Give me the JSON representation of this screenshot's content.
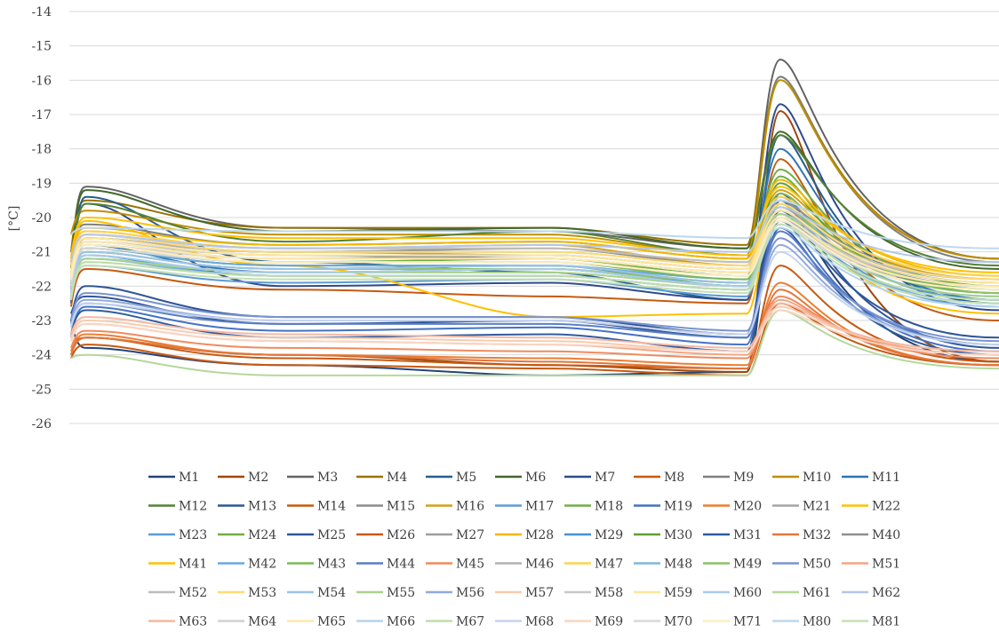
{
  "chart_data": {
    "type": "line",
    "ylabel": "[°C]",
    "ylim": [
      -26,
      -14
    ],
    "yticks": [
      "-14",
      "-15",
      "-16",
      "-17",
      "-18",
      "-19",
      "-20",
      "-21",
      "-22",
      "-23",
      "-24",
      "-25",
      "-26"
    ],
    "grid": "horizontal",
    "legend_position": "bottom",
    "x_samples": 7,
    "series": [
      {
        "name": "M1",
        "color": "#264478",
        "values": [
          -23.0,
          -23.8,
          -24.3,
          -24.6,
          -24.5,
          -19.5,
          -24.2
        ]
      },
      {
        "name": "M2",
        "color": "#9E480E",
        "values": [
          -24.0,
          -23.5,
          -24.0,
          -24.3,
          -24.5,
          -16.9,
          -24.2
        ]
      },
      {
        "name": "M3",
        "color": "#636363",
        "values": [
          -21.5,
          -19.1,
          -20.3,
          -20.4,
          -20.9,
          -15.4,
          -21.2
        ]
      },
      {
        "name": "M4",
        "color": "#997300",
        "values": [
          -21.0,
          -19.5,
          -20.3,
          -20.3,
          -20.8,
          -15.9,
          -21.2
        ]
      },
      {
        "name": "M5",
        "color": "#255E91",
        "values": [
          -22.5,
          -19.4,
          -21.3,
          -21.6,
          -22.4,
          -17.6,
          -22.5
        ]
      },
      {
        "name": "M6",
        "color": "#43682B",
        "values": [
          -21.5,
          -19.2,
          -20.4,
          -20.3,
          -20.9,
          -17.5,
          -21.5
        ]
      },
      {
        "name": "M7",
        "color": "#2F4B8C",
        "values": [
          -22.0,
          -19.6,
          -22.0,
          -21.9,
          -22.4,
          -16.7,
          -22.7
        ]
      },
      {
        "name": "M8",
        "color": "#C55A11",
        "values": [
          -22.6,
          -21.5,
          -22.1,
          -22.3,
          -22.5,
          -18.3,
          -23.0
        ]
      },
      {
        "name": "M9",
        "color": "#7F7F7F",
        "values": [
          -21.0,
          -20.2,
          -20.8,
          -20.7,
          -21.2,
          -15.9,
          -21.3
        ]
      },
      {
        "name": "M10",
        "color": "#BF8F00",
        "values": [
          -20.5,
          -19.8,
          -20.5,
          -20.5,
          -21.1,
          -16.0,
          -21.2
        ]
      },
      {
        "name": "M11",
        "color": "#2E75B6",
        "values": [
          -22.0,
          -20.8,
          -21.6,
          -21.5,
          -22.0,
          -18.0,
          -22.4
        ]
      },
      {
        "name": "M12",
        "color": "#548235",
        "values": [
          -22.0,
          -19.6,
          -20.7,
          -20.4,
          -21.1,
          -17.6,
          -21.4
        ]
      },
      {
        "name": "M13",
        "color": "#2F5597",
        "values": [
          -23.0,
          -22.0,
          -22.9,
          -22.9,
          -23.4,
          -19.8,
          -23.5
        ]
      },
      {
        "name": "M14",
        "color": "#C55A11",
        "values": [
          -23.8,
          -23.5,
          -24.1,
          -24.3,
          -24.4,
          -21.4,
          -24.2
        ]
      },
      {
        "name": "M15",
        "color": "#8C8C8C",
        "values": [
          -22.0,
          -20.6,
          -21.1,
          -21.2,
          -21.6,
          -19.8,
          -22.0
        ]
      },
      {
        "name": "M16",
        "color": "#D4A017",
        "values": [
          -21.2,
          -20.4,
          -20.9,
          -20.8,
          -21.4,
          -19.2,
          -21.8
        ]
      },
      {
        "name": "M17",
        "color": "#5B9BD5",
        "values": [
          -22.4,
          -21.4,
          -21.9,
          -21.8,
          -22.3,
          -19.5,
          -22.6
        ]
      },
      {
        "name": "M18",
        "color": "#70AD47",
        "values": [
          -22.3,
          -21.2,
          -21.6,
          -21.5,
          -22.0,
          -18.8,
          -22.2
        ]
      },
      {
        "name": "M19",
        "color": "#4472C4",
        "values": [
          -23.5,
          -22.6,
          -23.3,
          -23.2,
          -23.7,
          -20.1,
          -23.9
        ]
      },
      {
        "name": "M20",
        "color": "#ED7D31",
        "values": [
          -23.9,
          -23.4,
          -24.0,
          -24.1,
          -24.3,
          -21.9,
          -24.3
        ]
      },
      {
        "name": "M21",
        "color": "#A5A5A5",
        "values": [
          -21.6,
          -20.5,
          -21.0,
          -21.1,
          -21.5,
          -19.6,
          -21.9
        ]
      },
      {
        "name": "M22",
        "color": "#FFC000",
        "values": [
          -21.3,
          -20.1,
          -21.4,
          -22.9,
          -22.8,
          -19.6,
          -22.8
        ]
      },
      {
        "name": "M23",
        "color": "#5B9BD5",
        "values": [
          -22.1,
          -21.0,
          -21.5,
          -21.4,
          -22.0,
          -19.4,
          -22.4
        ]
      },
      {
        "name": "M24",
        "color": "#70AD47",
        "values": [
          -21.8,
          -20.9,
          -21.3,
          -21.2,
          -21.7,
          -18.6,
          -22.0
        ]
      },
      {
        "name": "M25",
        "color": "#2F5597",
        "values": [
          -22.8,
          -22.3,
          -23.1,
          -23.0,
          -23.5,
          -19.3,
          -23.8
        ]
      },
      {
        "name": "M26",
        "color": "#C55A11",
        "values": [
          -24.1,
          -23.7,
          -24.3,
          -24.4,
          -24.6,
          -22.5,
          -24.3
        ]
      },
      {
        "name": "M27",
        "color": "#9E9E9E",
        "values": [
          -21.9,
          -20.7,
          -21.2,
          -21.1,
          -21.5,
          -19.7,
          -22.1
        ]
      },
      {
        "name": "M28",
        "color": "#F4B800",
        "values": [
          -21.1,
          -20.3,
          -20.8,
          -20.7,
          -21.2,
          -18.9,
          -21.7
        ]
      },
      {
        "name": "M29",
        "color": "#4A90D9",
        "values": [
          -22.2,
          -21.1,
          -21.7,
          -21.7,
          -22.1,
          -19.9,
          -22.5
        ]
      },
      {
        "name": "M30",
        "color": "#5E9E37",
        "values": [
          -22.0,
          -20.9,
          -21.4,
          -21.4,
          -21.9,
          -19.0,
          -22.2
        ]
      },
      {
        "name": "M31",
        "color": "#2E5C9E",
        "values": [
          -23.4,
          -22.7,
          -23.5,
          -23.4,
          -23.9,
          -20.3,
          -24.0
        ]
      },
      {
        "name": "M32",
        "color": "#E2763A",
        "values": [
          -24.0,
          -23.5,
          -24.0,
          -24.2,
          -24.4,
          -22.1,
          -24.3
        ]
      },
      {
        "name": "M40",
        "color": "#8F8F8F",
        "values": [
          -21.8,
          -20.6,
          -21.0,
          -20.9,
          -21.4,
          -19.5,
          -21.8
        ]
      },
      {
        "name": "M41",
        "color": "#FFC000",
        "values": [
          -21.2,
          -20.0,
          -20.6,
          -20.6,
          -21.1,
          -19.1,
          -21.6
        ]
      },
      {
        "name": "M42",
        "color": "#6AA9DE",
        "values": [
          -22.0,
          -20.9,
          -21.4,
          -21.4,
          -21.8,
          -19.8,
          -22.3
        ]
      },
      {
        "name": "M43",
        "color": "#7CB955",
        "values": [
          -21.9,
          -20.8,
          -21.3,
          -21.3,
          -21.8,
          -19.3,
          -22.1
        ]
      },
      {
        "name": "M44",
        "color": "#5A7FC7",
        "values": [
          -23.2,
          -22.5,
          -23.1,
          -23.1,
          -23.5,
          -20.4,
          -23.7
        ]
      },
      {
        "name": "M45",
        "color": "#F08A5D",
        "values": [
          -23.8,
          -23.3,
          -23.8,
          -23.9,
          -24.1,
          -22.3,
          -24.1
        ]
      },
      {
        "name": "M46",
        "color": "#B2B2B2",
        "values": [
          -21.7,
          -20.6,
          -21.0,
          -21.0,
          -21.4,
          -19.8,
          -21.9
        ]
      },
      {
        "name": "M47",
        "color": "#FFD24D",
        "values": [
          -21.4,
          -20.4,
          -20.9,
          -20.9,
          -21.3,
          -19.4,
          -21.7
        ]
      },
      {
        "name": "M48",
        "color": "#7DB5E3",
        "values": [
          -22.3,
          -21.2,
          -21.7,
          -21.7,
          -22.1,
          -20.0,
          -22.5
        ]
      },
      {
        "name": "M49",
        "color": "#8CC265",
        "values": [
          -22.1,
          -21.0,
          -21.5,
          -21.5,
          -21.9,
          -19.6,
          -22.2
        ]
      },
      {
        "name": "M50",
        "color": "#7A93CF",
        "values": [
          -23.0,
          -22.2,
          -22.9,
          -22.9,
          -23.3,
          -20.6,
          -23.6
        ]
      },
      {
        "name": "M51",
        "color": "#F4A582",
        "values": [
          -23.6,
          -23.1,
          -23.6,
          -23.7,
          -24.0,
          -22.4,
          -24.0
        ]
      },
      {
        "name": "M52",
        "color": "#BDBDBD",
        "values": [
          -21.6,
          -20.5,
          -20.9,
          -20.9,
          -21.3,
          -19.9,
          -21.8
        ]
      },
      {
        "name": "M53",
        "color": "#FFDA73",
        "values": [
          -21.5,
          -20.5,
          -21.0,
          -21.0,
          -21.4,
          -19.6,
          -21.8
        ]
      },
      {
        "name": "M54",
        "color": "#9DC3E6",
        "values": [
          -22.1,
          -21.0,
          -21.5,
          -21.4,
          -21.9,
          -20.1,
          -22.4
        ]
      },
      {
        "name": "M55",
        "color": "#A9D18E",
        "values": [
          -22.2,
          -21.2,
          -21.6,
          -21.6,
          -22.0,
          -19.9,
          -22.3
        ]
      },
      {
        "name": "M56",
        "color": "#8FAADC",
        "values": [
          -23.1,
          -22.4,
          -23.0,
          -23.0,
          -23.4,
          -20.8,
          -23.7
        ]
      },
      {
        "name": "M57",
        "color": "#F8CBAD",
        "values": [
          -23.5,
          -23.0,
          -23.5,
          -23.6,
          -23.9,
          -22.6,
          -23.9
        ]
      },
      {
        "name": "M58",
        "color": "#C9C9C9",
        "values": [
          -21.8,
          -20.7,
          -21.1,
          -21.1,
          -21.5,
          -20.0,
          -21.9
        ]
      },
      {
        "name": "M59",
        "color": "#FFE699",
        "values": [
          -21.6,
          -20.6,
          -21.1,
          -21.1,
          -21.5,
          -19.8,
          -21.9
        ]
      },
      {
        "name": "M60",
        "color": "#A9CCEA",
        "values": [
          -22.2,
          -21.1,
          -21.6,
          -21.5,
          -22.0,
          -20.2,
          -22.5
        ]
      },
      {
        "name": "M61",
        "color": "#B4D89A",
        "values": [
          -24.1,
          -24.0,
          -24.6,
          -24.6,
          -24.6,
          -22.7,
          -24.4
        ]
      },
      {
        "name": "M62",
        "color": "#B4C7E7",
        "values": [
          -21.3,
          -20.5,
          -20.9,
          -20.8,
          -21.0,
          -19.7,
          -21.3
        ]
      },
      {
        "name": "M63",
        "color": "#F4B8A4",
        "values": [
          -23.4,
          -22.9,
          -23.4,
          -23.5,
          -23.8,
          -22.5,
          -23.9
        ]
      },
      {
        "name": "M64",
        "color": "#D0D0D0",
        "values": [
          -21.9,
          -20.8,
          -21.2,
          -21.2,
          -21.6,
          -20.1,
          -22.0
        ]
      },
      {
        "name": "M65",
        "color": "#FFE8A8",
        "values": [
          -21.7,
          -20.7,
          -21.2,
          -21.2,
          -21.6,
          -20.0,
          -22.0
        ]
      },
      {
        "name": "M66",
        "color": "#B5D4EE",
        "values": [
          -22.3,
          -21.3,
          -21.7,
          -21.7,
          -22.1,
          -20.3,
          -22.6
        ]
      },
      {
        "name": "M67",
        "color": "#BFDDA8",
        "values": [
          -22.3,
          -21.3,
          -21.7,
          -21.7,
          -22.1,
          -20.1,
          -22.4
        ]
      },
      {
        "name": "M68",
        "color": "#C5D3EE",
        "values": [
          -23.2,
          -22.5,
          -23.0,
          -23.0,
          -23.4,
          -21.0,
          -23.7
        ]
      },
      {
        "name": "M69",
        "color": "#F9D5C4",
        "values": [
          -23.6,
          -23.1,
          -23.6,
          -23.7,
          -23.9,
          -22.7,
          -24.0
        ]
      },
      {
        "name": "M70",
        "color": "#D9D9D9",
        "values": [
          -22.0,
          -20.9,
          -21.3,
          -21.3,
          -21.7,
          -20.2,
          -22.1
        ]
      },
      {
        "name": "M71",
        "color": "#FFEDBF",
        "values": [
          -21.8,
          -20.8,
          -21.3,
          -21.3,
          -21.7,
          -20.1,
          -22.1
        ]
      },
      {
        "name": "M80",
        "color": "#BDD7EE",
        "values": [
          -20.5,
          -20.3,
          -20.4,
          -20.4,
          -20.6,
          -19.5,
          -20.9
        ]
      },
      {
        "name": "M81",
        "color": "#C5E0B4",
        "values": [
          -22.4,
          -21.4,
          -21.8,
          -21.8,
          -22.2,
          -20.2,
          -22.5
        ]
      }
    ]
  }
}
